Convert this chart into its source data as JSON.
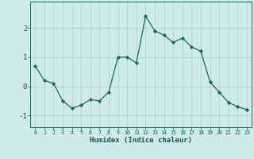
{
  "x": [
    0,
    1,
    2,
    3,
    4,
    5,
    6,
    7,
    8,
    9,
    10,
    11,
    12,
    13,
    14,
    15,
    16,
    17,
    18,
    19,
    20,
    21,
    22,
    23
  ],
  "y": [
    0.7,
    0.2,
    0.1,
    -0.5,
    -0.75,
    -0.65,
    -0.45,
    -0.5,
    -0.2,
    1.0,
    1.0,
    0.8,
    2.4,
    1.9,
    1.75,
    1.5,
    1.65,
    1.35,
    1.2,
    0.15,
    -0.2,
    -0.55,
    -0.7,
    -0.8
  ],
  "xlabel": "Humidex (Indice chaleur)",
  "ylim": [
    -1.4,
    2.9
  ],
  "xlim": [
    -0.5,
    23.5
  ],
  "line_color": "#1a6b5a",
  "marker": "D",
  "marker_size": 2.2,
  "bg_color": "#ceeaea",
  "grid_color": "#aed4d4",
  "tick_label_color": "#1a5050",
  "xlabel_color": "#1a5050",
  "yticks": [
    -1,
    0,
    1,
    2
  ],
  "xticks": [
    0,
    1,
    2,
    3,
    4,
    5,
    6,
    7,
    8,
    9,
    10,
    11,
    12,
    13,
    14,
    15,
    16,
    17,
    18,
    19,
    20,
    21,
    22,
    23
  ]
}
